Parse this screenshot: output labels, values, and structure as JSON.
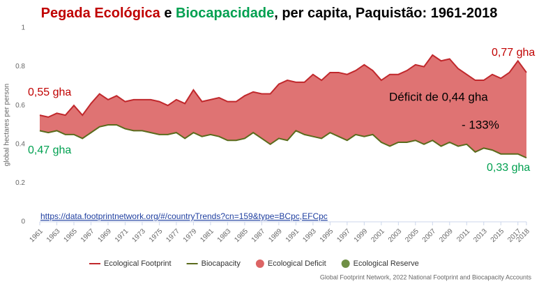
{
  "chart_data": {
    "type": "area",
    "title_parts": [
      {
        "text": "Pegada Ecológica",
        "color": "#c00000"
      },
      {
        "text": " e ",
        "color": "#000000"
      },
      {
        "text": "Biocapacidade",
        "color": "#00a050"
      },
      {
        "text": ", per capita, Paquistão: 1961-2018",
        "color": "#000000"
      }
    ],
    "y_label": "global hectares per person",
    "x": [
      1961,
      1962,
      1963,
      1964,
      1965,
      1966,
      1967,
      1968,
      1969,
      1970,
      1971,
      1972,
      1973,
      1974,
      1975,
      1976,
      1977,
      1978,
      1979,
      1980,
      1981,
      1982,
      1983,
      1984,
      1985,
      1986,
      1987,
      1988,
      1989,
      1990,
      1991,
      1992,
      1993,
      1994,
      1995,
      1996,
      1997,
      1998,
      1999,
      2000,
      2001,
      2002,
      2003,
      2004,
      2005,
      2006,
      2007,
      2008,
      2009,
      2010,
      2011,
      2012,
      2013,
      2014,
      2015,
      2016,
      2017,
      2018
    ],
    "series": [
      {
        "name": "Ecological Footprint",
        "color": "#c0282c",
        "values": [
          0.55,
          0.54,
          0.56,
          0.55,
          0.6,
          0.55,
          0.61,
          0.66,
          0.63,
          0.65,
          0.62,
          0.63,
          0.63,
          0.63,
          0.62,
          0.6,
          0.63,
          0.61,
          0.68,
          0.62,
          0.63,
          0.64,
          0.62,
          0.62,
          0.65,
          0.67,
          0.66,
          0.66,
          0.71,
          0.73,
          0.72,
          0.72,
          0.76,
          0.73,
          0.77,
          0.77,
          0.76,
          0.78,
          0.81,
          0.78,
          0.73,
          0.76,
          0.76,
          0.78,
          0.81,
          0.8,
          0.86,
          0.83,
          0.84,
          0.79,
          0.76,
          0.73,
          0.73,
          0.76,
          0.74,
          0.77,
          0.83,
          0.77
        ]
      },
      {
        "name": "Biocapacity",
        "color": "#5a6b1c",
        "values": [
          0.47,
          0.46,
          0.47,
          0.45,
          0.45,
          0.43,
          0.46,
          0.49,
          0.5,
          0.5,
          0.48,
          0.47,
          0.47,
          0.46,
          0.45,
          0.45,
          0.46,
          0.43,
          0.46,
          0.44,
          0.45,
          0.44,
          0.42,
          0.42,
          0.43,
          0.46,
          0.43,
          0.4,
          0.43,
          0.42,
          0.47,
          0.45,
          0.44,
          0.43,
          0.46,
          0.44,
          0.42,
          0.45,
          0.44,
          0.45,
          0.41,
          0.39,
          0.41,
          0.41,
          0.42,
          0.4,
          0.42,
          0.39,
          0.41,
          0.39,
          0.4,
          0.36,
          0.38,
          0.37,
          0.35,
          0.35,
          0.35,
          0.33
        ]
      }
    ],
    "areas": [
      {
        "name": "Ecological Deficit",
        "color": "#dc6464"
      },
      {
        "name": "Ecological Reserve",
        "color": "#6f8f45"
      }
    ],
    "xlim": [
      1961,
      2018
    ],
    "xticks": [
      1961,
      1963,
      1965,
      1967,
      1969,
      1971,
      1973,
      1975,
      1977,
      1979,
      1981,
      1983,
      1985,
      1987,
      1989,
      1991,
      1993,
      1995,
      1997,
      1999,
      2001,
      2003,
      2005,
      2007,
      2009,
      2011,
      2013,
      2015,
      2017,
      2018
    ],
    "ylim": [
      0,
      1
    ],
    "yticks": [
      0,
      0.2,
      0.4,
      0.6,
      0.8,
      1
    ],
    "grid": false,
    "annotations": [
      {
        "text": "0,55 gha",
        "color": "#c00000"
      },
      {
        "text": "0,47 gha",
        "color": "#00a050"
      },
      {
        "text": "0,77 gha",
        "color": "#c00000"
      },
      {
        "text": "0,33 gha",
        "color": "#00a050"
      },
      {
        "text": "Déficit de 0,44 gha",
        "color": "#000000"
      },
      {
        "text": "- 133%",
        "color": "#000000"
      },
      {
        "text": "https://data.footprintnetwork.org/#/countryTrends?cn=159&type=BCpc,EFCpc",
        "color": "#1f3fa0"
      }
    ],
    "source": "Global Footprint Network, 2022 National Footprint and Biocapacity Accounts"
  }
}
